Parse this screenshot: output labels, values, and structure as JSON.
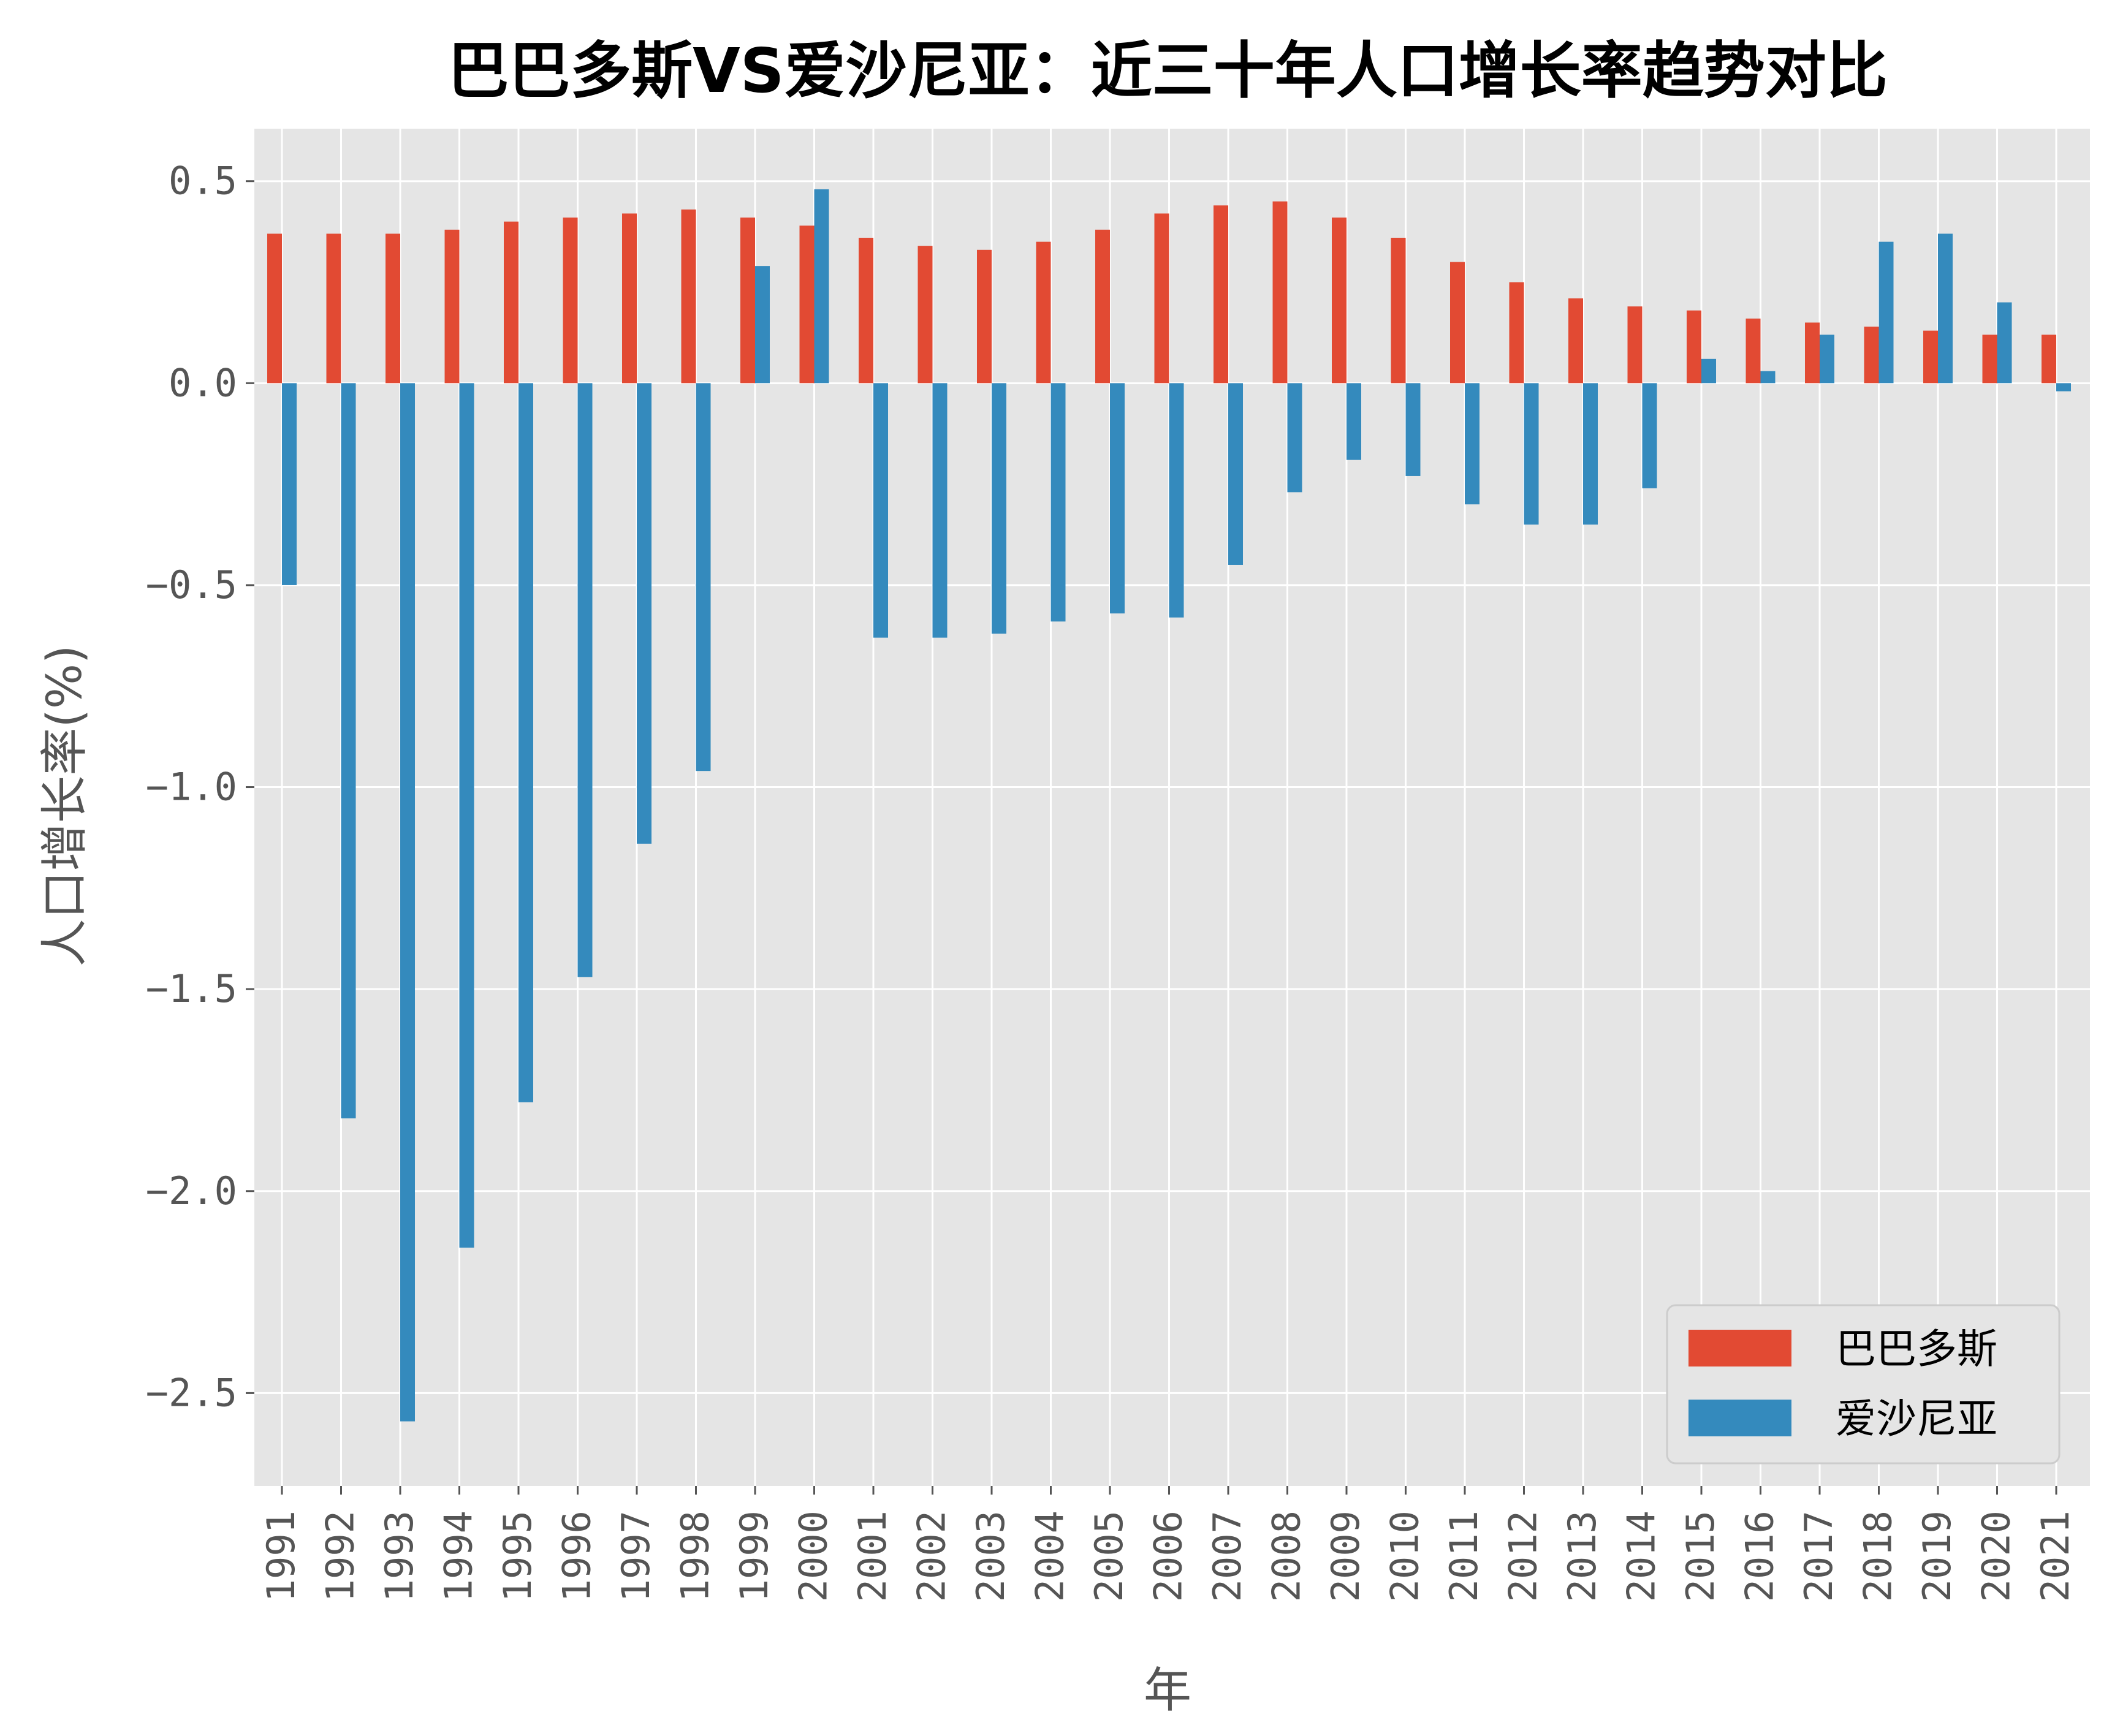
{
  "chart_data": {
    "type": "bar",
    "title": "巴巴多斯VS爱沙尼亚：近三十年人口增长率趋势对比",
    "xlabel": "年",
    "ylabel": "人口增长率(%)",
    "ylim": [
      -2.73,
      0.63
    ],
    "yticks": [
      0.5,
      0.0,
      -0.5,
      -1.0,
      -1.5,
      -2.0,
      -2.5
    ],
    "ytick_labels": [
      "0.5",
      "0.0",
      "−0.5",
      "−1.0",
      "−1.5",
      "−2.0",
      "−2.5"
    ],
    "grid": true,
    "legend_position": "bottom-right",
    "categories": [
      "1991",
      "1992",
      "1993",
      "1994",
      "1995",
      "1996",
      "1997",
      "1998",
      "1999",
      "2000",
      "2001",
      "2002",
      "2003",
      "2004",
      "2005",
      "2006",
      "2007",
      "2008",
      "2009",
      "2010",
      "2011",
      "2012",
      "2013",
      "2014",
      "2015",
      "2016",
      "2017",
      "2018",
      "2019",
      "2020",
      "2021"
    ],
    "series": [
      {
        "name": "巴巴多斯",
        "color": "#E24A33",
        "values": [
          0.37,
          0.37,
          0.37,
          0.38,
          0.4,
          0.41,
          0.42,
          0.43,
          0.41,
          0.39,
          0.36,
          0.34,
          0.33,
          0.35,
          0.38,
          0.42,
          0.44,
          0.45,
          0.41,
          0.36,
          0.3,
          0.25,
          0.21,
          0.19,
          0.18,
          0.16,
          0.15,
          0.14,
          0.13,
          0.12,
          0.12
        ]
      },
      {
        "name": "爱沙尼亚",
        "color": "#348ABD",
        "values": [
          -0.5,
          -1.82,
          -2.57,
          -2.14,
          -1.78,
          -1.47,
          -1.14,
          -0.96,
          0.29,
          0.48,
          -0.63,
          -0.63,
          -0.62,
          -0.59,
          -0.57,
          -0.58,
          -0.45,
          -0.27,
          -0.19,
          -0.23,
          -0.3,
          -0.35,
          -0.35,
          -0.26,
          0.06,
          0.03,
          0.12,
          0.35,
          0.37,
          0.2,
          -0.02
        ]
      }
    ]
  }
}
